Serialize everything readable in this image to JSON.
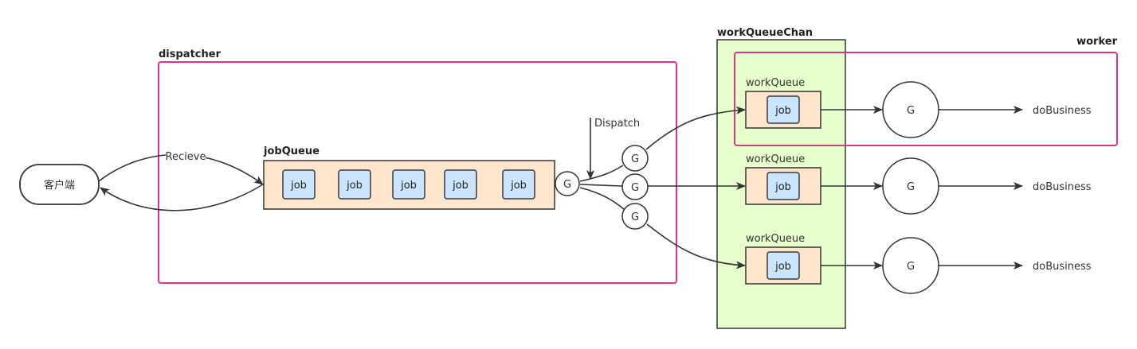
{
  "client": {
    "label": "客户端"
  },
  "edges": {
    "receive_label": "Recieve",
    "dispatch_label": "Dispatch"
  },
  "dispatcher": {
    "label": "dispatcher",
    "job_queue": {
      "label": "jobQueue",
      "jobs": [
        "job",
        "job",
        "job",
        "job",
        "job"
      ]
    },
    "dispatch_goroutine": "G",
    "worker_goroutines": [
      "G",
      "G",
      "G"
    ]
  },
  "work_queue_chan": {
    "label": "workQueueChan",
    "queues": [
      {
        "label": "workQueue",
        "job": "job"
      },
      {
        "label": "workQueue",
        "job": "job"
      },
      {
        "label": "workQueue",
        "job": "job"
      }
    ]
  },
  "worker": {
    "label": "worker",
    "rows": [
      {
        "goroutine": "G",
        "output": "doBusiness"
      },
      {
        "goroutine": "G",
        "output": "doBusiness"
      },
      {
        "goroutine": "G",
        "output": "doBusiness"
      }
    ]
  },
  "colors": {
    "container_border": "#e0338a",
    "queue_fill": "#ffe6cc",
    "job_fill": "#cce5ff",
    "job_border": "#36393d",
    "chan_fill": "#e6ffcc",
    "stroke": "#333333"
  }
}
